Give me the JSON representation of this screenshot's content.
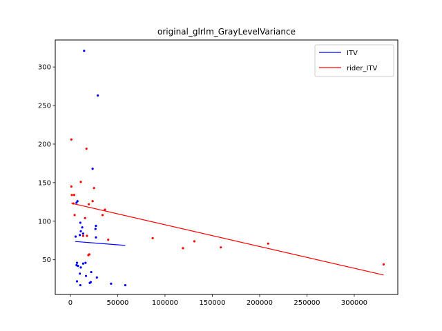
{
  "chart_data": {
    "type": "scatter",
    "title": "original_glrlm_GrayLevelVariance",
    "xlabel": "",
    "ylabel": "",
    "xlim": [
      -16000,
      346000
    ],
    "ylim": [
      5,
      335
    ],
    "xticks": [
      0,
      50000,
      100000,
      150000,
      200000,
      250000,
      300000
    ],
    "xtick_labels": [
      "0",
      "50000",
      "100000",
      "150000",
      "200000",
      "250000",
      "300000"
    ],
    "yticks": [
      50,
      100,
      150,
      200,
      250,
      300
    ],
    "ytick_labels": [
      "50",
      "100",
      "150",
      "200",
      "250",
      "300"
    ],
    "grid": false,
    "legend_position": "top-right",
    "series": [
      {
        "name": "ITV",
        "color": "#0000ff",
        "points": [
          [
            14500,
            321
          ],
          [
            29000,
            263
          ],
          [
            23500,
            168
          ],
          [
            7500,
            126
          ],
          [
            6500,
            124
          ],
          [
            10500,
            98
          ],
          [
            12500,
            92
          ],
          [
            27000,
            94
          ],
          [
            26500,
            90
          ],
          [
            11000,
            87
          ],
          [
            13500,
            84
          ],
          [
            10000,
            82
          ],
          [
            5500,
            80
          ],
          [
            27000,
            79
          ],
          [
            7000,
            46
          ],
          [
            6500,
            43
          ],
          [
            8000,
            42
          ],
          [
            13500,
            45
          ],
          [
            16000,
            46
          ],
          [
            11000,
            40
          ],
          [
            22000,
            34
          ],
          [
            10000,
            32
          ],
          [
            16500,
            29
          ],
          [
            28000,
            27
          ],
          [
            7000,
            22
          ],
          [
            21500,
            21
          ],
          [
            20500,
            20
          ],
          [
            43000,
            19
          ],
          [
            10500,
            17
          ],
          [
            58000,
            17
          ]
        ],
        "fit": [
          [
            5000,
            73.7
          ],
          [
            58000,
            68.6
          ]
        ]
      },
      {
        "name": "rider_ITV",
        "color": "#ff0000",
        "points": [
          [
            1000,
            206
          ],
          [
            17000,
            194
          ],
          [
            11000,
            151
          ],
          [
            1000,
            145
          ],
          [
            25000,
            143
          ],
          [
            1500,
            134
          ],
          [
            4000,
            134
          ],
          [
            23500,
            126
          ],
          [
            3000,
            123
          ],
          [
            19500,
            122
          ],
          [
            36500,
            115
          ],
          [
            34000,
            108
          ],
          [
            4500,
            108
          ],
          [
            15500,
            104
          ],
          [
            13500,
            81
          ],
          [
            17500,
            81
          ],
          [
            40000,
            76
          ],
          [
            87000,
            78
          ],
          [
            131000,
            74
          ],
          [
            209000,
            71
          ],
          [
            159000,
            66
          ],
          [
            119000,
            65
          ],
          [
            20000,
            57
          ],
          [
            19000,
            56
          ],
          [
            331000,
            44
          ]
        ],
        "fit": [
          [
            1000,
            123.3
          ],
          [
            331000,
            30.2
          ]
        ]
      }
    ]
  }
}
